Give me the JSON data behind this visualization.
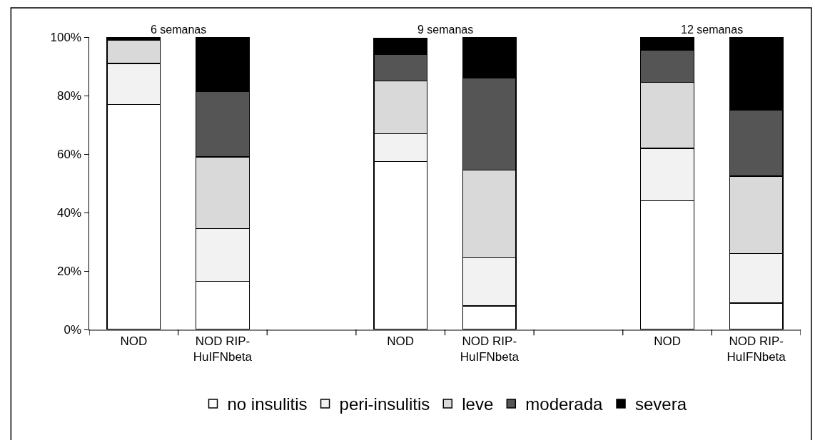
{
  "chart_data": {
    "type": "bar",
    "stacked": true,
    "categories": [
      "NOD",
      "NOD RIP-\nHuIFNbeta",
      null,
      "NOD",
      "NOD RIP-\nHuIFNbeta",
      null,
      "NOD",
      "NOD RIP-\nHuIFNbeta"
    ],
    "series": [
      {
        "name": "no insulitis",
        "color": "#ffffff",
        "values": [
          77,
          16.5,
          null,
          57.5,
          8,
          null,
          44,
          9
        ]
      },
      {
        "name": "peri-insulitis",
        "color": "#f2f2f2",
        "values": [
          14,
          18,
          null,
          9.5,
          16.5,
          null,
          18,
          17
        ]
      },
      {
        "name": "leve",
        "color": "#d9d9d9",
        "values": [
          8,
          24.5,
          null,
          18,
          30,
          null,
          22.5,
          26.5
        ]
      },
      {
        "name": "moderada",
        "color": "#555555",
        "values": [
          0,
          22.5,
          null,
          9,
          31.5,
          null,
          11,
          22.5
        ]
      },
      {
        "name": "severa",
        "color": "#000000",
        "values": [
          1,
          18.5,
          null,
          5.5,
          14,
          null,
          4.5,
          25
        ]
      }
    ],
    "annotations": [
      "6 semanas",
      "9 semanas",
      "12 semanas"
    ],
    "ylim": [
      0,
      100
    ],
    "yticks": [
      {
        "value": 0,
        "label": "0%"
      },
      {
        "value": 20,
        "label": "20%"
      },
      {
        "value": 40,
        "label": "40%"
      },
      {
        "value": 60,
        "label": "60%"
      },
      {
        "value": 80,
        "label": "80%"
      },
      {
        "value": 100,
        "label": "100%"
      }
    ],
    "grid": false,
    "legend": "bottom"
  }
}
